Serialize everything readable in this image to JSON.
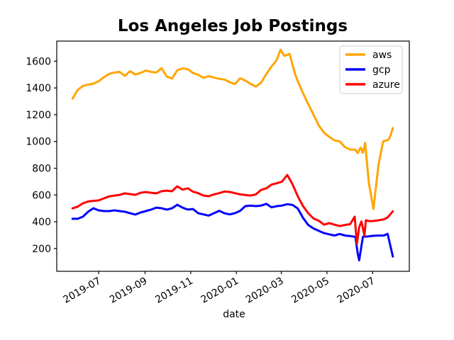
{
  "title": "Los Angeles Job Postings",
  "chart_data": {
    "type": "line",
    "title": "Los Angeles Job Postings",
    "xlabel": "date",
    "xlabel_color": "#8B0000",
    "ylabel": "",
    "grid": false,
    "background": "#ffffff",
    "spine_color": "#000000",
    "x_unit": "days since 2019-05-27, weekly job-posting samples",
    "xlim": [
      -21,
      450
    ],
    "ylim": [
      30,
      1750
    ],
    "y_ticks": [
      200,
      400,
      600,
      800,
      1000,
      1200,
      1400,
      1600
    ],
    "x_ticks": [
      {
        "day": 35,
        "label": "2019-07"
      },
      {
        "day": 97,
        "label": "2019-09"
      },
      {
        "day": 158,
        "label": "2019-11"
      },
      {
        "day": 219,
        "label": "2020-01"
      },
      {
        "day": 279,
        "label": "2020-03"
      },
      {
        "day": 340,
        "label": "2020-05"
      },
      {
        "day": 401,
        "label": "2020-07"
      }
    ],
    "legend": {
      "position": "upper right",
      "entries": [
        {
          "name": "aws",
          "color": "#FFA500"
        },
        {
          "name": "gcp",
          "color": "#0000FF"
        },
        {
          "name": "azure",
          "color": "#FF0000"
        }
      ]
    },
    "series": [
      {
        "name": "aws",
        "color": "#FFA500",
        "points": [
          [
            0,
            1320
          ],
          [
            7,
            1385
          ],
          [
            14,
            1415
          ],
          [
            21,
            1425
          ],
          [
            28,
            1432
          ],
          [
            35,
            1450
          ],
          [
            42,
            1480
          ],
          [
            49,
            1505
          ],
          [
            56,
            1515
          ],
          [
            63,
            1520
          ],
          [
            70,
            1490
          ],
          [
            77,
            1525
          ],
          [
            84,
            1500
          ],
          [
            91,
            1512
          ],
          [
            98,
            1530
          ],
          [
            105,
            1520
          ],
          [
            112,
            1515
          ],
          [
            119,
            1548
          ],
          [
            126,
            1485
          ],
          [
            133,
            1470
          ],
          [
            140,
            1532
          ],
          [
            147,
            1545
          ],
          [
            154,
            1540
          ],
          [
            161,
            1512
          ],
          [
            168,
            1498
          ],
          [
            175,
            1475
          ],
          [
            182,
            1488
          ],
          [
            189,
            1478
          ],
          [
            196,
            1468
          ],
          [
            203,
            1463
          ],
          [
            210,
            1443
          ],
          [
            217,
            1428
          ],
          [
            224,
            1472
          ],
          [
            231,
            1455
          ],
          [
            238,
            1430
          ],
          [
            245,
            1410
          ],
          [
            252,
            1440
          ],
          [
            259,
            1505
          ],
          [
            266,
            1560
          ],
          [
            273,
            1610
          ],
          [
            278,
            1685
          ],
          [
            283,
            1640
          ],
          [
            290,
            1655
          ],
          [
            297,
            1510
          ],
          [
            301,
            1450
          ],
          [
            308,
            1360
          ],
          [
            315,
            1280
          ],
          [
            322,
            1200
          ],
          [
            329,
            1120
          ],
          [
            336,
            1065
          ],
          [
            343,
            1035
          ],
          [
            350,
            1008
          ],
          [
            357,
            1000
          ],
          [
            364,
            958
          ],
          [
            371,
            940
          ],
          [
            378,
            938
          ],
          [
            381,
            913
          ],
          [
            385,
            955
          ],
          [
            388,
            915
          ],
          [
            391,
            990
          ],
          [
            396,
            690
          ],
          [
            402,
            495
          ],
          [
            409,
            830
          ],
          [
            415,
            1000
          ],
          [
            422,
            1012
          ],
          [
            425,
            1045
          ],
          [
            428,
            1100
          ]
        ]
      },
      {
        "name": "gcp",
        "color": "#0000FF",
        "points": [
          [
            0,
            422
          ],
          [
            7,
            422
          ],
          [
            14,
            438
          ],
          [
            21,
            475
          ],
          [
            28,
            501
          ],
          [
            35,
            485
          ],
          [
            42,
            480
          ],
          [
            49,
            480
          ],
          [
            56,
            485
          ],
          [
            63,
            480
          ],
          [
            70,
            475
          ],
          [
            77,
            464
          ],
          [
            84,
            454
          ],
          [
            91,
            469
          ],
          [
            98,
            480
          ],
          [
            105,
            491
          ],
          [
            112,
            506
          ],
          [
            119,
            501
          ],
          [
            126,
            491
          ],
          [
            133,
            501
          ],
          [
            140,
            527
          ],
          [
            147,
            506
          ],
          [
            154,
            491
          ],
          [
            161,
            495
          ],
          [
            168,
            464
          ],
          [
            175,
            455
          ],
          [
            182,
            446
          ],
          [
            189,
            464
          ],
          [
            196,
            482
          ],
          [
            203,
            464
          ],
          [
            210,
            455
          ],
          [
            217,
            464
          ],
          [
            224,
            482
          ],
          [
            231,
            517
          ],
          [
            238,
            521
          ],
          [
            245,
            517
          ],
          [
            252,
            521
          ],
          [
            259,
            534
          ],
          [
            266,
            508
          ],
          [
            273,
            517
          ],
          [
            280,
            521
          ],
          [
            287,
            531
          ],
          [
            294,
            526
          ],
          [
            301,
            499
          ],
          [
            308,
            429
          ],
          [
            315,
            376
          ],
          [
            322,
            350
          ],
          [
            329,
            332
          ],
          [
            336,
            315
          ],
          [
            343,
            306
          ],
          [
            350,
            297
          ],
          [
            357,
            309
          ],
          [
            364,
            297
          ],
          [
            371,
            293
          ],
          [
            378,
            288
          ],
          [
            381,
            165
          ],
          [
            383,
            112
          ],
          [
            385,
            182
          ],
          [
            388,
            288
          ],
          [
            395,
            291
          ],
          [
            402,
            295
          ],
          [
            409,
            297
          ],
          [
            416,
            297
          ],
          [
            421,
            310
          ],
          [
            428,
            140
          ]
        ]
      },
      {
        "name": "azure",
        "color": "#FF0000",
        "points": [
          [
            0,
            500
          ],
          [
            7,
            513
          ],
          [
            14,
            538
          ],
          [
            21,
            552
          ],
          [
            28,
            556
          ],
          [
            35,
            560
          ],
          [
            42,
            575
          ],
          [
            49,
            590
          ],
          [
            56,
            596
          ],
          [
            63,
            601
          ],
          [
            70,
            612
          ],
          [
            77,
            607
          ],
          [
            84,
            601
          ],
          [
            91,
            617
          ],
          [
            98,
            622
          ],
          [
            105,
            617
          ],
          [
            112,
            612
          ],
          [
            119,
            628
          ],
          [
            126,
            633
          ],
          [
            133,
            628
          ],
          [
            140,
            665
          ],
          [
            147,
            640
          ],
          [
            154,
            650
          ],
          [
            161,
            625
          ],
          [
            168,
            614
          ],
          [
            175,
            596
          ],
          [
            182,
            591
          ],
          [
            189,
            605
          ],
          [
            196,
            614
          ],
          [
            203,
            626
          ],
          [
            210,
            623
          ],
          [
            217,
            614
          ],
          [
            224,
            605
          ],
          [
            231,
            600
          ],
          [
            238,
            596
          ],
          [
            245,
            605
          ],
          [
            252,
            638
          ],
          [
            259,
            650
          ],
          [
            266,
            678
          ],
          [
            273,
            688
          ],
          [
            280,
            700
          ],
          [
            287,
            750
          ],
          [
            294,
            680
          ],
          [
            301,
            590
          ],
          [
            308,
            517
          ],
          [
            315,
            464
          ],
          [
            322,
            425
          ],
          [
            329,
            408
          ],
          [
            336,
            378
          ],
          [
            343,
            390
          ],
          [
            350,
            378
          ],
          [
            357,
            368
          ],
          [
            364,
            376
          ],
          [
            371,
            382
          ],
          [
            377,
            438
          ],
          [
            380,
            235
          ],
          [
            383,
            359
          ],
          [
            386,
            402
          ],
          [
            390,
            297
          ],
          [
            392,
            411
          ],
          [
            396,
            405
          ],
          [
            402,
            406
          ],
          [
            409,
            411
          ],
          [
            416,
            418
          ],
          [
            421,
            432
          ],
          [
            428,
            478
          ]
        ]
      }
    ]
  }
}
